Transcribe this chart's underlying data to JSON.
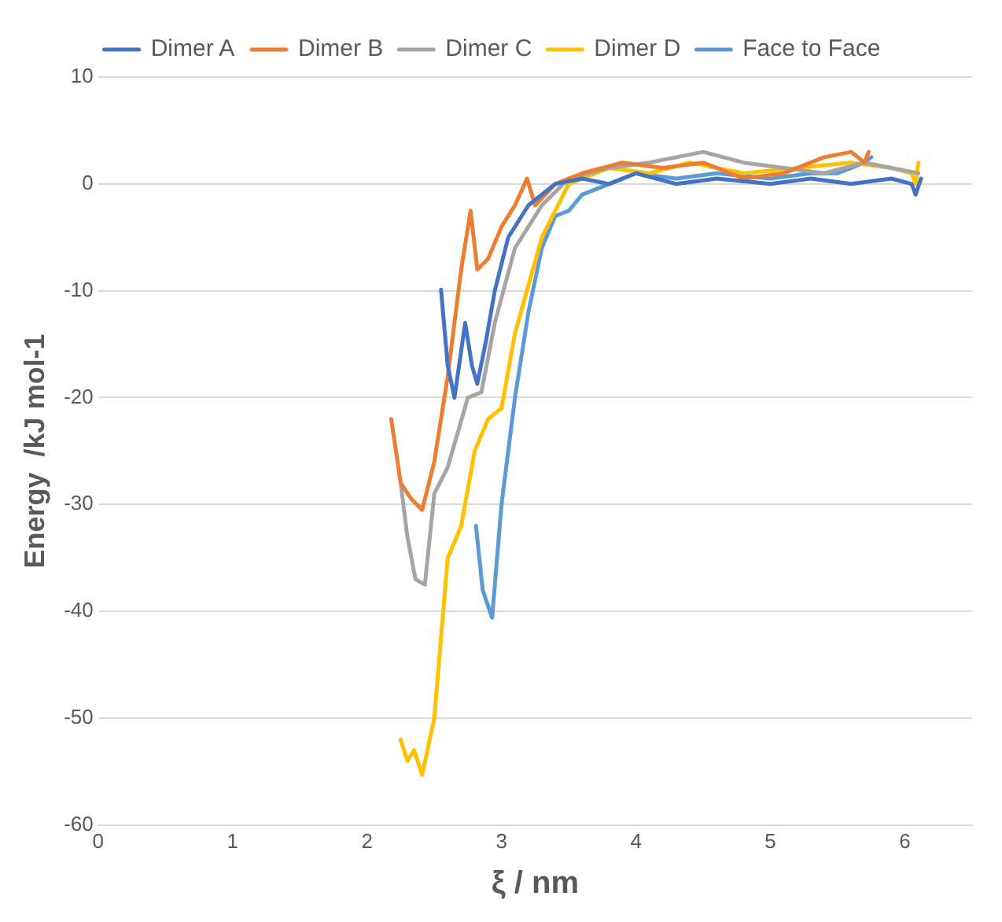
{
  "chart_data": {
    "type": "line",
    "xlabel": "ξ / nm",
    "ylabel": "Energy  /kJ mol-1",
    "xlim": [
      0,
      6.5
    ],
    "xticks": [
      0,
      1,
      2,
      3,
      4,
      5,
      6
    ],
    "ylim": [
      -60,
      10
    ],
    "yticks": [
      -60,
      -50,
      -40,
      -30,
      -20,
      -10,
      0,
      10
    ],
    "grid": "y",
    "legend": "top",
    "marker": "none",
    "line_style": "solid",
    "series": [
      {
        "name": "Dimer A",
        "color": "#4472c4",
        "x": [
          2.55,
          2.6,
          2.65,
          2.73,
          2.78,
          2.82,
          2.88,
          2.95,
          3.05,
          3.2,
          3.4,
          3.6,
          3.8,
          4.0,
          4.3,
          4.6,
          5.0,
          5.3,
          5.6,
          5.9,
          6.05,
          6.08,
          6.12
        ],
        "values": [
          -9.9,
          -17,
          -20,
          -13,
          -17,
          -18.7,
          -15,
          -10,
          -5,
          -2,
          0,
          0.5,
          0,
          1,
          0,
          0.5,
          0,
          0.5,
          0,
          0.5,
          0,
          -1,
          0.5
        ]
      },
      {
        "name": "Dimer B",
        "color": "#ed7d31",
        "x": [
          2.18,
          2.25,
          2.33,
          2.41,
          2.5,
          2.6,
          2.7,
          2.77,
          2.82,
          2.9,
          3.0,
          3.1,
          3.19,
          3.25,
          3.4,
          3.6,
          3.9,
          4.2,
          4.5,
          4.8,
          5.1,
          5.4,
          5.6,
          5.7,
          5.73
        ],
        "values": [
          -22,
          -28,
          -29.5,
          -30.5,
          -26,
          -18,
          -8,
          -2.5,
          -8,
          -7,
          -4,
          -2,
          0.5,
          -2,
          0,
          1,
          2,
          1.5,
          2,
          0.5,
          1,
          2.5,
          3,
          2,
          3
        ]
      },
      {
        "name": "Dimer C",
        "color": "#a5a5a5",
        "x": [
          2.25,
          2.3,
          2.36,
          2.43,
          2.5,
          2.6,
          2.75,
          2.85,
          2.95,
          3.1,
          3.3,
          3.5,
          3.8,
          4.1,
          4.5,
          4.8,
          5.1,
          5.4,
          5.7,
          5.9,
          6.1
        ],
        "values": [
          -28,
          -33,
          -37,
          -37.5,
          -29,
          -26.5,
          -20,
          -19.5,
          -13,
          -6,
          -2,
          0.5,
          1.5,
          2,
          3,
          2,
          1.5,
          1,
          2,
          1.5,
          1
        ]
      },
      {
        "name": "Dimer D",
        "color": "#ffc000",
        "x": [
          2.25,
          2.3,
          2.35,
          2.41,
          2.5,
          2.6,
          2.7,
          2.8,
          2.9,
          3.0,
          3.1,
          3.3,
          3.5,
          3.8,
          4.1,
          4.4,
          4.8,
          5.2,
          5.6,
          5.9,
          6.05,
          6.08,
          6.1
        ],
        "values": [
          -52,
          -54,
          -53,
          -55.3,
          -50,
          -35,
          -32,
          -25,
          -22,
          -21,
          -14,
          -5,
          0,
          1.5,
          1,
          2,
          1,
          1.5,
          2,
          1.5,
          1,
          0,
          2
        ]
      },
      {
        "name": "Face to Face",
        "color": "#5b9bd5",
        "x": [
          2.81,
          2.86,
          2.93,
          3.0,
          3.1,
          3.2,
          3.3,
          3.4,
          3.5,
          3.6,
          3.8,
          4.0,
          4.3,
          4.6,
          5.0,
          5.3,
          5.5,
          5.7,
          5.75
        ],
        "values": [
          -32,
          -38,
          -40.6,
          -30,
          -20,
          -12,
          -6,
          -3,
          -2.5,
          -1,
          0,
          1,
          0.5,
          1,
          0.5,
          1,
          1,
          2,
          2.5
        ]
      }
    ]
  }
}
